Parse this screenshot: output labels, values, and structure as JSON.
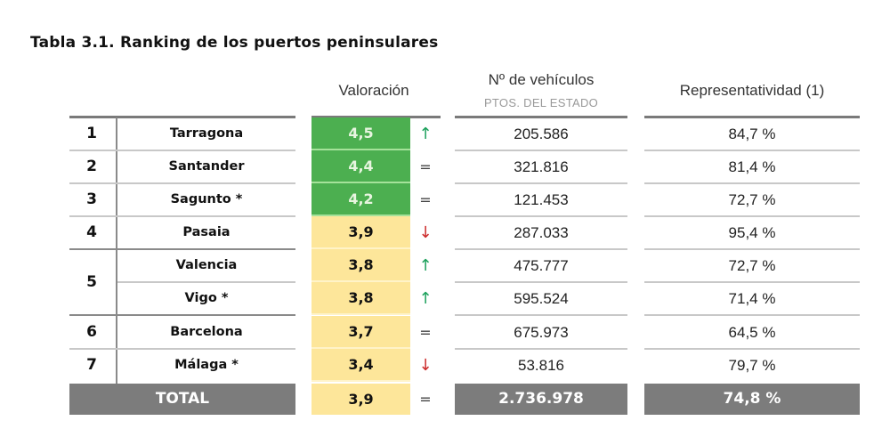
{
  "title": "Tabla 3.1. Ranking de los puertos peninsulares",
  "headers": {
    "valoracion": "Valoración",
    "vehiculos": "Nº de vehículos",
    "vehiculos_sub": "PTOS. DEL ESTADO",
    "representatividad": "Representatividad (1)"
  },
  "colors": {
    "high_score": "#4caf50",
    "mid_score": "#fde69a",
    "total_bg": "#7c7c7c",
    "trend_up": "#1aa05a",
    "trend_down": "#cc2a2a"
  },
  "rows": [
    {
      "rank": "1",
      "port": "Tarragona",
      "score": "4,5",
      "band": "green",
      "trend": "up",
      "trend_glyph": "↑",
      "vehicles": "205.586",
      "representativeness": "84,7 %"
    },
    {
      "rank": "2",
      "port": "Santander",
      "score": "4,4",
      "band": "green",
      "trend": "equal",
      "trend_glyph": "=",
      "vehicles": "321.816",
      "representativeness": "81,4 %"
    },
    {
      "rank": "3",
      "port": "Sagunto *",
      "score": "4,2",
      "band": "green",
      "trend": "equal",
      "trend_glyph": "=",
      "vehicles": "121.453",
      "representativeness": "72,7 %"
    },
    {
      "rank": "4",
      "port": "Pasaia",
      "score": "3,9",
      "band": "yellow",
      "trend": "down",
      "trend_glyph": "↓",
      "vehicles": "287.033",
      "representativeness": "95,4 %"
    },
    {
      "rank": "5",
      "port": "Valencia",
      "score": "3,8",
      "band": "yellow",
      "trend": "up",
      "trend_glyph": "↑",
      "vehicles": "475.777",
      "representativeness": "72,7 %"
    },
    {
      "rank": "5",
      "port": "Vigo *",
      "score": "3,8",
      "band": "yellow",
      "trend": "up",
      "trend_glyph": "↑",
      "vehicles": "595.524",
      "representativeness": "71,4 %"
    },
    {
      "rank": "6",
      "port": "Barcelona",
      "score": "3,7",
      "band": "yellow",
      "trend": "equal",
      "trend_glyph": "=",
      "vehicles": "675.973",
      "representativeness": "64,5 %"
    },
    {
      "rank": "7",
      "port": "Málaga *",
      "score": "3,4",
      "band": "yellow",
      "trend": "down",
      "trend_glyph": "↓",
      "vehicles": "53.816",
      "representativeness": "79,7 %"
    }
  ],
  "total": {
    "label": "TOTAL",
    "score": "3,9",
    "trend": "equal",
    "trend_glyph": "=",
    "vehicles": "2.736.978",
    "representativeness": "74,8 %"
  }
}
